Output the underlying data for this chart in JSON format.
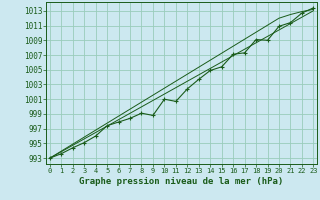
{
  "title": "Graphe pression niveau de la mer (hPa)",
  "background_color": "#cce8f0",
  "grid_color": "#99ccbb",
  "line_color": "#1a5c1a",
  "x_ticks": [
    0,
    1,
    2,
    3,
    4,
    5,
    6,
    7,
    8,
    9,
    10,
    11,
    12,
    13,
    14,
    15,
    16,
    17,
    18,
    19,
    20,
    21,
    22,
    23
  ],
  "y_ticks": [
    993,
    995,
    997,
    999,
    1001,
    1003,
    1005,
    1007,
    1009,
    1011,
    1013
  ],
  "ylim": [
    992.2,
    1014.2
  ],
  "xlim": [
    -0.3,
    23.3
  ],
  "smooth_line1": [
    993.0,
    993.87,
    994.74,
    995.61,
    996.48,
    997.35,
    998.22,
    999.09,
    999.96,
    1000.83,
    1001.7,
    1002.57,
    1003.44,
    1004.31,
    1005.18,
    1006.05,
    1006.92,
    1007.79,
    1008.66,
    1009.53,
    1010.4,
    1011.27,
    1012.14,
    1013.01
  ],
  "smooth_line2": [
    993.0,
    993.95,
    994.9,
    995.85,
    996.8,
    997.75,
    998.7,
    999.65,
    1000.6,
    1001.55,
    1002.5,
    1003.45,
    1004.4,
    1005.35,
    1006.3,
    1007.25,
    1008.2,
    1009.15,
    1010.1,
    1011.05,
    1012.0,
    1012.5,
    1012.9,
    1013.2
  ],
  "jagged_line": [
    993.0,
    993.6,
    994.4,
    995.1,
    996.0,
    997.4,
    997.9,
    998.4,
    999.1,
    998.8,
    1001.0,
    1000.7,
    1002.4,
    1003.7,
    1004.9,
    1005.4,
    1007.1,
    1007.3,
    1009.1,
    1009.0,
    1010.9,
    1011.4,
    1012.7,
    1013.4
  ],
  "ylabel_fontsize": 5.5,
  "xlabel_fontsize": 5.5,
  "title_fontsize": 6.5
}
